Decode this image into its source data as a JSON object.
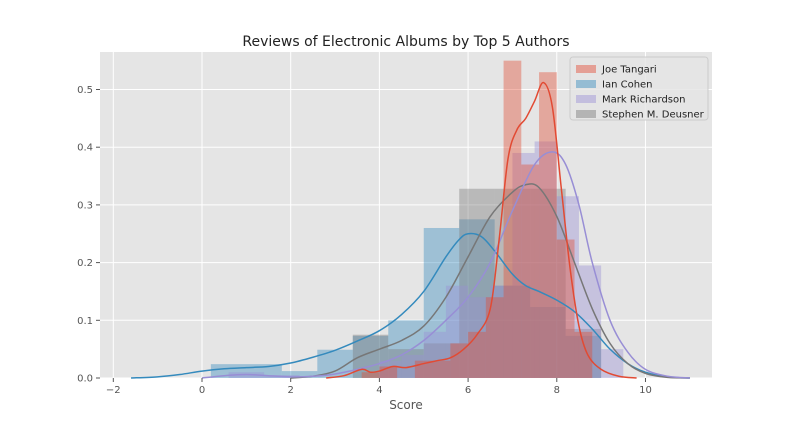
{
  "chart_data": {
    "type": "histogram+kde",
    "title": "Reviews of Electronic Albums by Top 5 Authors",
    "xlabel": "Score",
    "ylabel": "",
    "xlim": [
      -2.3,
      11.5
    ],
    "ylim": [
      0,
      0.565
    ],
    "x_ticks": [
      -2,
      0,
      2,
      4,
      6,
      8,
      10
    ],
    "y_ticks": [
      0.0,
      0.1,
      0.2,
      0.3,
      0.4,
      0.5
    ],
    "grid": true,
    "legend_position": "top-right",
    "background": "#e5e5e5",
    "series": [
      {
        "name": "Ian Cohen",
        "color": "#348abd",
        "hist": {
          "bins": [
            [
              0.2,
              1.8,
              0.024
            ],
            [
              1.8,
              2.6,
              0.012
            ],
            [
              2.6,
              3.4,
              0.049
            ],
            [
              3.4,
              4.2,
              0.073
            ],
            [
              4.2,
              5.0,
              0.1
            ],
            [
              5.0,
              5.8,
              0.26
            ],
            [
              5.8,
              6.6,
              0.275
            ],
            [
              6.6,
              7.4,
              0.16
            ],
            [
              7.4,
              8.2,
              0.123
            ],
            [
              8.2,
              9.0,
              0.073
            ]
          ]
        },
        "kde": [
          [
            -1.6,
            0.0
          ],
          [
            -1.0,
            0.002
          ],
          [
            -0.5,
            0.006
          ],
          [
            0.0,
            0.012
          ],
          [
            0.5,
            0.016
          ],
          [
            1.0,
            0.018
          ],
          [
            1.5,
            0.02
          ],
          [
            2.0,
            0.026
          ],
          [
            2.5,
            0.036
          ],
          [
            3.0,
            0.048
          ],
          [
            3.5,
            0.064
          ],
          [
            4.0,
            0.082
          ],
          [
            4.5,
            0.11
          ],
          [
            5.0,
            0.15
          ],
          [
            5.5,
            0.21
          ],
          [
            5.8,
            0.24
          ],
          [
            6.0,
            0.25
          ],
          [
            6.3,
            0.245
          ],
          [
            6.6,
            0.22
          ],
          [
            7.0,
            0.18
          ],
          [
            7.3,
            0.16
          ],
          [
            7.6,
            0.15
          ],
          [
            8.0,
            0.135
          ],
          [
            8.4,
            0.115
          ],
          [
            8.8,
            0.085
          ],
          [
            9.2,
            0.05
          ],
          [
            9.6,
            0.025
          ],
          [
            10.0,
            0.01
          ],
          [
            10.5,
            0.002
          ],
          [
            11.0,
            0.0
          ]
        ]
      },
      {
        "name": "Stephen M. Deusner",
        "color": "#777777",
        "hist": {
          "bins": [
            [
              3.4,
              4.2,
              0.075
            ],
            [
              4.2,
              5.0,
              0.05
            ],
            [
              5.0,
              5.8,
              0.06
            ],
            [
              5.8,
              6.6,
              0.328
            ],
            [
              6.6,
              7.4,
              0.328
            ],
            [
              7.4,
              8.2,
              0.328
            ],
            [
              8.2,
              9.0,
              0.085
            ]
          ]
        },
        "kde": [
          [
            2.0,
            0.0
          ],
          [
            2.5,
            0.003
          ],
          [
            3.0,
            0.012
          ],
          [
            3.5,
            0.035
          ],
          [
            4.0,
            0.05
          ],
          [
            4.5,
            0.065
          ],
          [
            5.0,
            0.09
          ],
          [
            5.5,
            0.14
          ],
          [
            6.0,
            0.21
          ],
          [
            6.5,
            0.28
          ],
          [
            7.0,
            0.322
          ],
          [
            7.3,
            0.335
          ],
          [
            7.6,
            0.33
          ],
          [
            8.0,
            0.28
          ],
          [
            8.4,
            0.2
          ],
          [
            8.8,
            0.12
          ],
          [
            9.2,
            0.06
          ],
          [
            9.6,
            0.025
          ],
          [
            10.0,
            0.008
          ],
          [
            10.5,
            0.001
          ],
          [
            11.0,
            0.0
          ]
        ]
      },
      {
        "name": "Mark Richardson",
        "color": "#988ed5",
        "hist": {
          "bins": [
            [
              0.6,
              1.4,
              0.01
            ],
            [
              1.4,
              2.2,
              0.005
            ],
            [
              4.0,
              4.5,
              0.03
            ],
            [
              4.5,
              5.0,
              0.04
            ],
            [
              5.0,
              5.5,
              0.08
            ],
            [
              5.5,
              6.0,
              0.16
            ],
            [
              6.0,
              6.5,
              0.14
            ],
            [
              6.5,
              7.0,
              0.16
            ],
            [
              7.0,
              7.5,
              0.39
            ],
            [
              7.5,
              8.0,
              0.41
            ],
            [
              8.0,
              8.5,
              0.315
            ],
            [
              8.5,
              9.0,
              0.195
            ],
            [
              9.0,
              9.5,
              0.05
            ]
          ]
        },
        "kde": [
          [
            0.0,
            0.0
          ],
          [
            0.5,
            0.004
          ],
          [
            1.0,
            0.006
          ],
          [
            1.5,
            0.004
          ],
          [
            2.0,
            0.002
          ],
          [
            2.5,
            0.003
          ],
          [
            3.0,
            0.007
          ],
          [
            3.5,
            0.015
          ],
          [
            4.0,
            0.025
          ],
          [
            4.5,
            0.04
          ],
          [
            5.0,
            0.065
          ],
          [
            5.5,
            0.1
          ],
          [
            6.0,
            0.14
          ],
          [
            6.5,
            0.2
          ],
          [
            7.0,
            0.29
          ],
          [
            7.5,
            0.37
          ],
          [
            7.9,
            0.392
          ],
          [
            8.2,
            0.37
          ],
          [
            8.5,
            0.3
          ],
          [
            8.8,
            0.2
          ],
          [
            9.2,
            0.1
          ],
          [
            9.6,
            0.045
          ],
          [
            10.0,
            0.015
          ],
          [
            10.5,
            0.003
          ],
          [
            11.0,
            0.0
          ]
        ]
      },
      {
        "name": "Joe Tangari",
        "color": "#e24a33",
        "hist": {
          "bins": [
            [
              3.6,
              4.0,
              0.01
            ],
            [
              4.0,
              4.4,
              0.02
            ],
            [
              4.8,
              5.2,
              0.03
            ],
            [
              5.2,
              5.6,
              0.03
            ],
            [
              5.6,
              6.0,
              0.06
            ],
            [
              6.0,
              6.4,
              0.08
            ],
            [
              6.4,
              6.8,
              0.14
            ],
            [
              6.8,
              7.2,
              0.55
            ],
            [
              7.2,
              7.6,
              0.37
            ],
            [
              7.6,
              8.0,
              0.53
            ],
            [
              8.0,
              8.4,
              0.24
            ],
            [
              8.4,
              8.8,
              0.08
            ]
          ]
        },
        "kde": [
          [
            2.8,
            0.0
          ],
          [
            3.2,
            0.004
          ],
          [
            3.6,
            0.015
          ],
          [
            3.8,
            0.01
          ],
          [
            4.0,
            0.012
          ],
          [
            4.3,
            0.02
          ],
          [
            4.6,
            0.018
          ],
          [
            5.0,
            0.025
          ],
          [
            5.3,
            0.03
          ],
          [
            5.6,
            0.035
          ],
          [
            5.9,
            0.05
          ],
          [
            6.2,
            0.075
          ],
          [
            6.5,
            0.12
          ],
          [
            6.7,
            0.24
          ],
          [
            6.9,
            0.38
          ],
          [
            7.1,
            0.43
          ],
          [
            7.3,
            0.45
          ],
          [
            7.5,
            0.48
          ],
          [
            7.7,
            0.512
          ],
          [
            7.9,
            0.47
          ],
          [
            8.1,
            0.33
          ],
          [
            8.3,
            0.19
          ],
          [
            8.5,
            0.09
          ],
          [
            8.7,
            0.04
          ],
          [
            9.0,
            0.015
          ],
          [
            9.4,
            0.003
          ],
          [
            9.8,
            0.0
          ]
        ]
      }
    ],
    "legend_order": [
      "Joe Tangari",
      "Ian Cohen",
      "Mark Richardson",
      "Stephen M. Deusner"
    ]
  }
}
